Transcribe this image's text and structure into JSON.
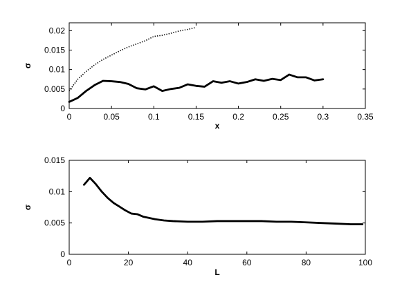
{
  "chart_data": [
    {
      "type": "line",
      "xlabel": "x",
      "ylabel": "σ",
      "xlim": [
        0,
        0.35
      ],
      "ylim": [
        0,
        0.022
      ],
      "x_ticks": [
        0,
        0.05,
        0.1,
        0.15,
        0.2,
        0.25,
        0.3,
        0.35
      ],
      "x_tick_labels": [
        "0",
        "0.05",
        "0.1",
        "0.15",
        "0.2",
        "0.25",
        "0.3",
        "0.35"
      ],
      "y_ticks": [
        0,
        0.005,
        0.01,
        0.015,
        0.02
      ],
      "y_tick_labels": [
        "0",
        "0.005",
        "0.01",
        "0.015",
        "0.02"
      ],
      "grid": false,
      "legend": "none",
      "series": [
        {
          "style": "solid",
          "color": "#000000",
          "x": [
            0,
            0.01,
            0.02,
            0.03,
            0.04,
            0.05,
            0.06,
            0.07,
            0.08,
            0.09,
            0.1,
            0.11,
            0.12,
            0.13,
            0.14,
            0.15,
            0.16,
            0.17,
            0.18,
            0.19,
            0.2,
            0.21,
            0.22,
            0.23,
            0.24,
            0.25,
            0.26,
            0.27,
            0.28,
            0.29,
            0.3
          ],
          "y": [
            0.0017,
            0.0027,
            0.0045,
            0.006,
            0.0071,
            0.007,
            0.0068,
            0.0063,
            0.0052,
            0.0049,
            0.0057,
            0.0045,
            0.005,
            0.0053,
            0.0062,
            0.0058,
            0.0056,
            0.007,
            0.0066,
            0.007,
            0.0064,
            0.0068,
            0.0075,
            0.0071,
            0.0076,
            0.0073,
            0.0087,
            0.008,
            0.008,
            0.0072,
            0.0075
          ]
        },
        {
          "style": "dotted",
          "color": "#000000",
          "x": [
            0,
            0.01,
            0.02,
            0.03,
            0.04,
            0.05,
            0.06,
            0.07,
            0.08,
            0.09,
            0.1,
            0.11,
            0.12,
            0.13,
            0.14,
            0.15
          ],
          "y": [
            0.0045,
            0.0075,
            0.0095,
            0.0112,
            0.0126,
            0.0137,
            0.0148,
            0.0158,
            0.0166,
            0.0174,
            0.0185,
            0.0188,
            0.0193,
            0.0199,
            0.0203,
            0.0208
          ]
        }
      ]
    },
    {
      "type": "line",
      "xlabel": "L",
      "ylabel": "σ",
      "xlim": [
        0,
        100
      ],
      "ylim": [
        0,
        0.015
      ],
      "x_ticks": [
        0,
        20,
        40,
        60,
        80,
        100
      ],
      "x_tick_labels": [
        "0",
        "20",
        "40",
        "60",
        "80",
        "100"
      ],
      "y_ticks": [
        0,
        0.005,
        0.01,
        0.015
      ],
      "y_tick_labels": [
        "0",
        "0.005",
        "0.01",
        "0.015"
      ],
      "grid": false,
      "legend": "none",
      "series": [
        {
          "style": "solid",
          "color": "#000000",
          "x": [
            5,
            7,
            9,
            11,
            13,
            15,
            17,
            19,
            21,
            23,
            25,
            27,
            29,
            32,
            35,
            40,
            45,
            50,
            55,
            60,
            65,
            70,
            75,
            80,
            85,
            90,
            95,
            99
          ],
          "y": [
            0.0111,
            0.0122,
            0.0112,
            0.01,
            0.009,
            0.0082,
            0.0076,
            0.007,
            0.0065,
            0.0064,
            0.006,
            0.0058,
            0.0056,
            0.0054,
            0.0053,
            0.0052,
            0.0052,
            0.0053,
            0.0053,
            0.0053,
            0.0053,
            0.0052,
            0.0052,
            0.0051,
            0.005,
            0.0049,
            0.0048,
            0.0048
          ]
        }
      ]
    }
  ]
}
